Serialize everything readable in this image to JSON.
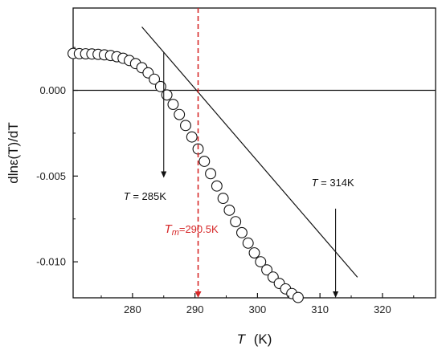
{
  "chart_data": {
    "type": "scatter",
    "xlabel": "T",
    "xlabel_unit": "(K)",
    "ylabel": "dlnε(T)/dT",
    "xlim": [
      270.5,
      328.5
    ],
    "ylim": [
      -0.0121,
      0.0048
    ],
    "x_ticks": [
      280,
      290,
      300,
      310,
      320
    ],
    "x_tick_labels": [
      "280",
      "290",
      "300",
      "310",
      "320"
    ],
    "y_ticks": [
      0.0,
      -0.005,
      -0.01
    ],
    "y_tick_labels": [
      "0.000",
      "-0.005",
      "-0.010"
    ],
    "grid": false,
    "series": [
      {
        "marker": "open-circle",
        "x": [
          270.5,
          271.5,
          272.5,
          273.5,
          274.5,
          275.5,
          276.5,
          277.5,
          278.5,
          279.5,
          280.5,
          281.5,
          282.5,
          283.5,
          284.5,
          285.5,
          286.5,
          287.5,
          288.5,
          289.5,
          290.5,
          291.5,
          292.5,
          293.5,
          294.5,
          295.5,
          296.5,
          297.5,
          298.5,
          299.5,
          300.5,
          301.5,
          302.5,
          303.5,
          304.5,
          305.5,
          306.5,
          307.5,
          308.5,
          309.5,
          310.5,
          311.5,
          312.5,
          313.5,
          314.5,
          315.5,
          316.5,
          317.5,
          318.5,
          319.5,
          320.5,
          321.5,
          322.5,
          323.5,
          324.5,
          325.5,
          326.5,
          327.5,
          328.5
        ],
        "y": [
          0.00215,
          0.00214,
          0.00213,
          0.00212,
          0.0021,
          0.00207,
          0.00203,
          0.00196,
          0.00187,
          0.00174,
          0.00156,
          0.00132,
          0.00102,
          0.00065,
          0.00022,
          -0.00027,
          -0.00082,
          -0.00141,
          -0.00205,
          -0.00272,
          -0.00342,
          -0.00414,
          -0.00486,
          -0.00558,
          -0.0063,
          -0.00699,
          -0.00766,
          -0.0083,
          -0.00891,
          -0.00948,
          -0.01,
          -0.01047,
          -0.01089,
          -0.01126,
          -0.01158,
          -0.01185,
          -0.01208,
          -0.01227,
          -0.01243,
          -0.01255,
          -0.01265,
          -0.01273,
          -0.01279,
          -0.01284,
          -0.01287,
          -0.0129,
          -0.01292,
          -0.01294,
          -0.01295,
          -0.01296,
          -0.01297,
          -0.01298,
          -0.01298,
          -0.01299,
          -0.01299,
          -0.01299,
          -0.013,
          -0.013,
          -0.013
        ]
      }
    ],
    "fit_line": {
      "x": [
        281.5,
        316.0
      ],
      "y": [
        0.0037,
        -0.0109
      ]
    },
    "zero_line": 0.0,
    "vertical_marker": {
      "x": 290.5,
      "label_T": "T",
      "label_sub": "m",
      "label_value": "=290.5K",
      "color": "#d62728"
    },
    "annotations": [
      {
        "label_T": "T",
        "label_rest": " = 285K",
        "x": 285,
        "arrow_y_from": 0.0022,
        "arrow_y_to": -0.0051
      },
      {
        "label_T": "T",
        "label_rest": " = 314K",
        "x": 312.5,
        "arrow_y_from": -0.0069,
        "arrow_y_to": -0.0121
      }
    ]
  }
}
